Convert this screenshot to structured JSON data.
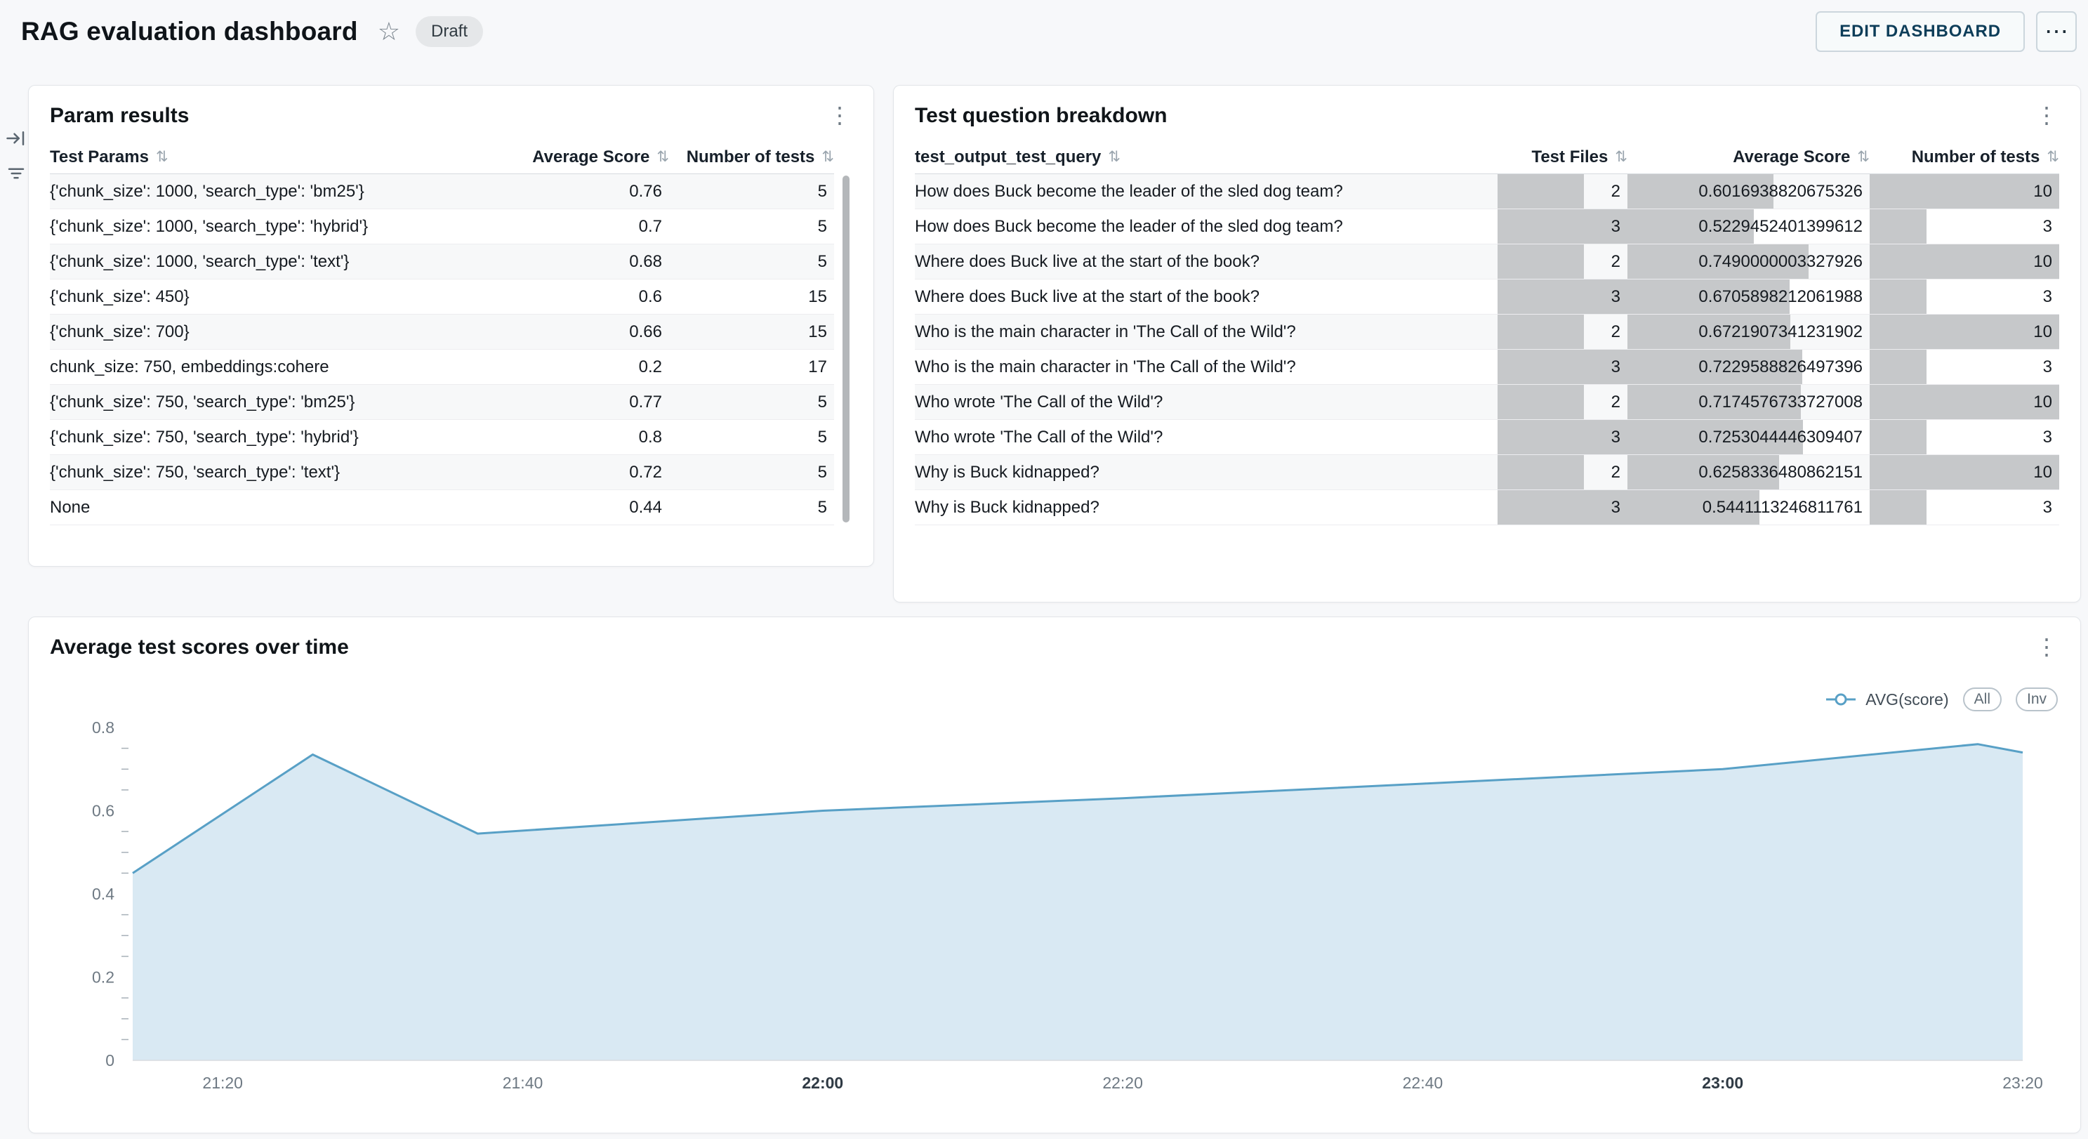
{
  "header": {
    "title": "RAG evaluation dashboard",
    "badge_label": "Draft",
    "edit_button_label": "EDIT DASHBOARD"
  },
  "icons": {
    "star": "☆",
    "more_horizontal": "⋯",
    "more_vertical": "⋮",
    "sort": "⇅"
  },
  "param_results": {
    "title": "Param results",
    "columns": [
      "Test Params",
      "Average Score",
      "Number of tests"
    ],
    "rows": [
      [
        "{'chunk_size': 1000, 'search_type': 'bm25'}",
        "0.76",
        "5"
      ],
      [
        "{'chunk_size': 1000, 'search_type': 'hybrid'}",
        "0.7",
        "5"
      ],
      [
        "{'chunk_size': 1000, 'search_type': 'text'}",
        "0.68",
        "5"
      ],
      [
        "{'chunk_size': 450}",
        "0.6",
        "15"
      ],
      [
        "{'chunk_size': 700}",
        "0.66",
        "15"
      ],
      [
        "chunk_size: 750, embeddings:cohere",
        "0.2",
        "17"
      ],
      [
        "{'chunk_size': 750, 'search_type': 'bm25'}",
        "0.77",
        "5"
      ],
      [
        "{'chunk_size': 750, 'search_type': 'hybrid'}",
        "0.8",
        "5"
      ],
      [
        "{'chunk_size': 750, 'search_type': 'text'}",
        "0.72",
        "5"
      ],
      [
        "None",
        "0.44",
        "5"
      ]
    ]
  },
  "question_breakdown": {
    "title": "Test question breakdown",
    "columns": [
      "test_output_test_query",
      "Test Files",
      "Average Score",
      "Number of tests"
    ],
    "bar_scale": {
      "test_files": 3,
      "avg_score": 1,
      "num_tests": 10
    },
    "bar_color": "#c6c8ca",
    "rows": [
      {
        "query": "How does Buck become the leader of the sled dog team?",
        "test_files": "2",
        "avg_score": "0.6016938820675326",
        "num_tests": "10"
      },
      {
        "query": "How does Buck become the leader of the sled dog team?",
        "test_files": "3",
        "avg_score": "0.5229452401399612",
        "num_tests": "3"
      },
      {
        "query": "Where does Buck live at the start of the book?",
        "test_files": "2",
        "avg_score": "0.7490000003327926",
        "num_tests": "10"
      },
      {
        "query": "Where does Buck live at the start of the book?",
        "test_files": "3",
        "avg_score": "0.6705898212061988",
        "num_tests": "3"
      },
      {
        "query": "Who is the main character in 'The Call of the Wild'?",
        "test_files": "2",
        "avg_score": "0.6721907341231902",
        "num_tests": "10"
      },
      {
        "query": "Who is the main character in 'The Call of the Wild'?",
        "test_files": "3",
        "avg_score": "0.7229588826497396",
        "num_tests": "3"
      },
      {
        "query": "Who wrote 'The Call of the Wild'?",
        "test_files": "2",
        "avg_score": "0.7174576733727008",
        "num_tests": "10"
      },
      {
        "query": "Who wrote 'The Call of the Wild'?",
        "test_files": "3",
        "avg_score": "0.7253044446309407",
        "num_tests": "3"
      },
      {
        "query": "Why is Buck kidnapped?",
        "test_files": "2",
        "avg_score": "0.6258336480862151",
        "num_tests": "10"
      },
      {
        "query": "Why is Buck kidnapped?",
        "test_files": "3",
        "avg_score": "0.5441113246811761",
        "num_tests": "3"
      }
    ]
  },
  "chart_data": {
    "type": "area",
    "title": "Average test scores over time",
    "legend": {
      "label": "AVG(score)",
      "buttons": [
        "All",
        "Inv"
      ]
    },
    "legend_position": "top-right",
    "series": [
      {
        "name": "AVG(score)",
        "points": [
          [
            "21:14",
            0.45
          ],
          [
            "21:26",
            0.735
          ],
          [
            "21:37",
            0.545
          ],
          [
            "22:00",
            0.6
          ],
          [
            "22:20",
            0.63
          ],
          [
            "22:40",
            0.665
          ],
          [
            "23:00",
            0.7
          ],
          [
            "23:17",
            0.76
          ],
          [
            "23:20",
            0.74
          ]
        ]
      }
    ],
    "x_ticks": [
      "21:20",
      "21:40",
      "22:00",
      "22:20",
      "22:40",
      "23:00",
      "23:20"
    ],
    "x_ticks_bold": [
      "22:00",
      "23:00"
    ],
    "x_range": [
      "21:14",
      "23:20"
    ],
    "y_ticks": [
      0,
      0.2,
      0.4,
      0.6,
      0.8
    ],
    "y_minor_step": 0.05,
    "ylim": [
      0,
      0.8
    ],
    "grid": false,
    "line_color": "#58a0c6",
    "fill_color": "#d9e9f3"
  }
}
